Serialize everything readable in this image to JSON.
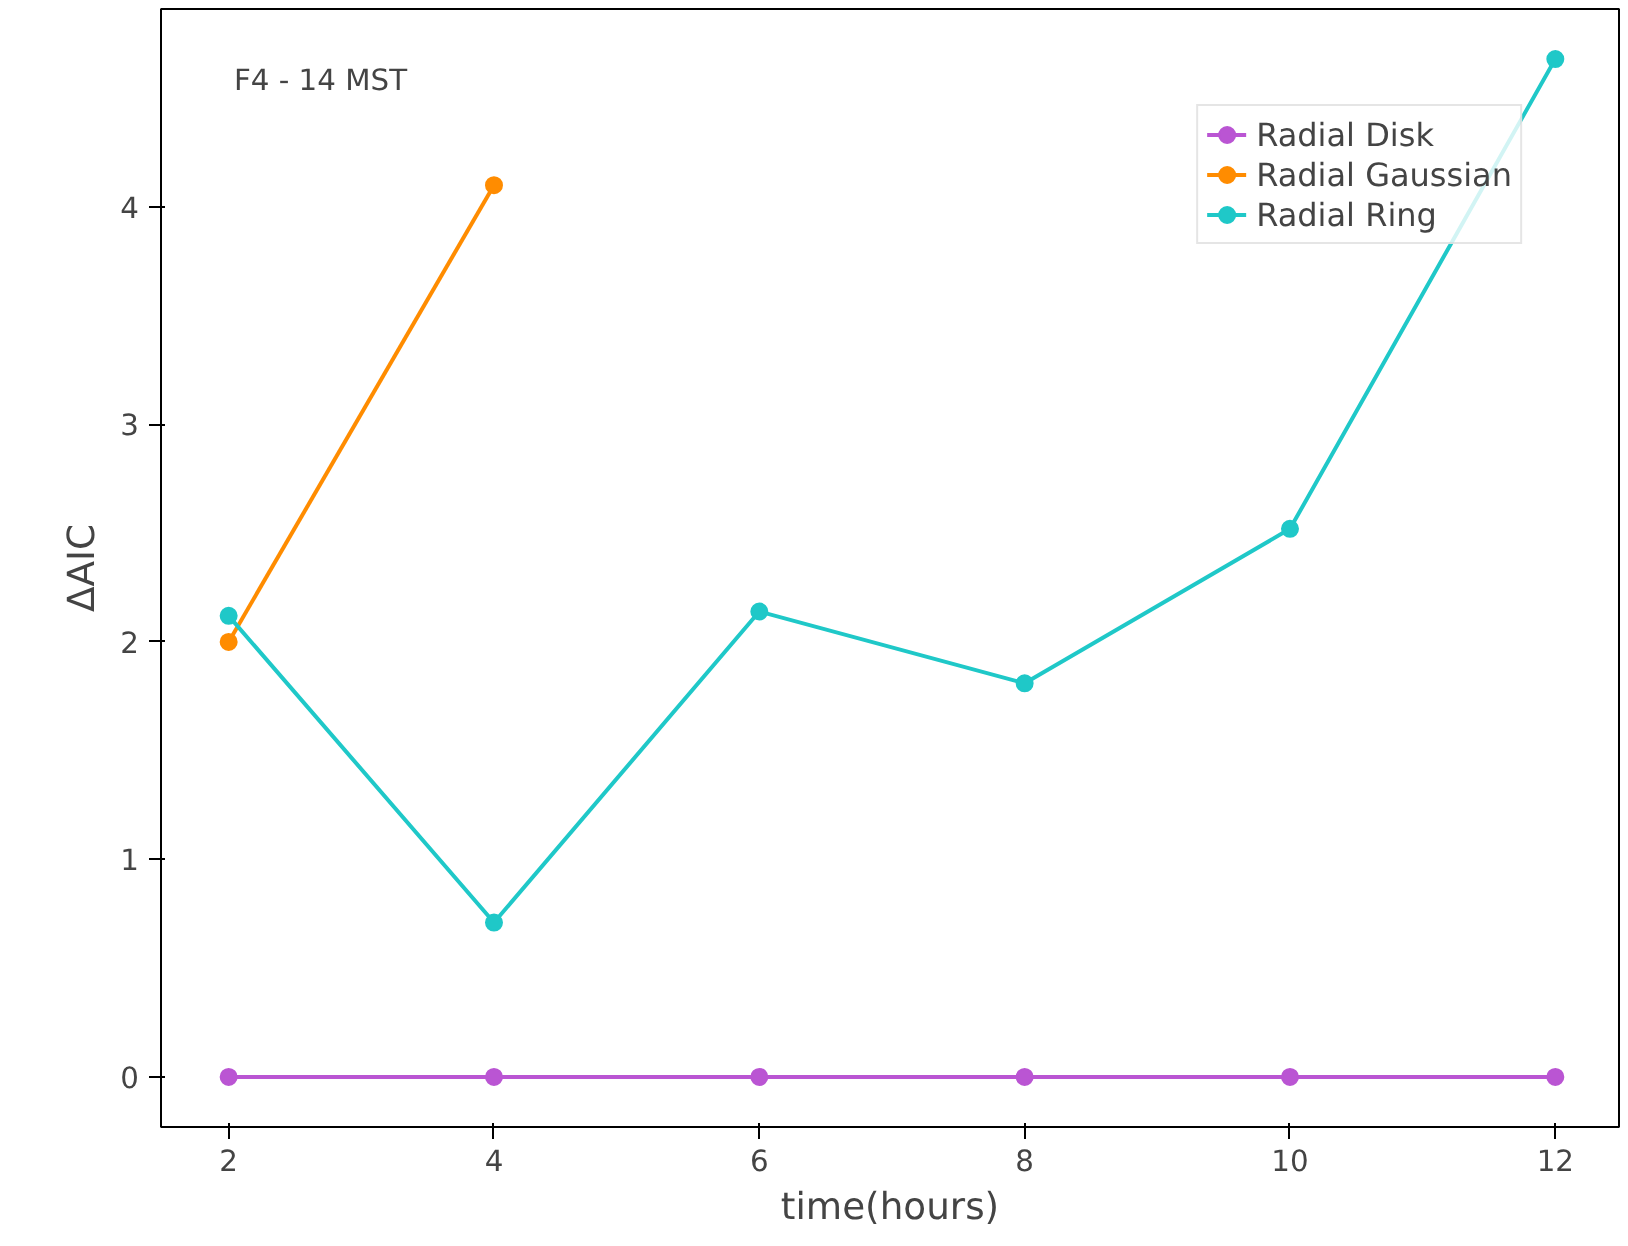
{
  "chart_data": {
    "type": "line",
    "xlabel": "time(hours)",
    "ylabel": "ΔAIC",
    "annotations": [
      "F4 - 14 MST"
    ],
    "x": [
      2,
      4,
      6,
      8,
      10,
      12
    ],
    "series": [
      {
        "name": "Radial Disk",
        "color": "#ba55d3",
        "values": [
          0,
          0,
          0,
          0,
          0,
          0
        ]
      },
      {
        "name": "Radial Gaussian",
        "color": "#ff8c00",
        "values": [
          2.0,
          4.1,
          null,
          null,
          null,
          null
        ]
      },
      {
        "name": "Radial Ring",
        "color": "#1fc8c8",
        "values": [
          2.12,
          0.71,
          2.14,
          1.81,
          2.52,
          4.68
        ]
      }
    ],
    "xlim": [
      1.49,
      12.48
    ],
    "ylim": [
      -0.23,
      4.91
    ],
    "xticks": [
      2,
      4,
      6,
      8,
      10,
      12
    ],
    "yticks": [
      0,
      1,
      2,
      3,
      4
    ],
    "grid": false,
    "legend": "top right",
    "marker": "circle",
    "line_style": "solid"
  }
}
